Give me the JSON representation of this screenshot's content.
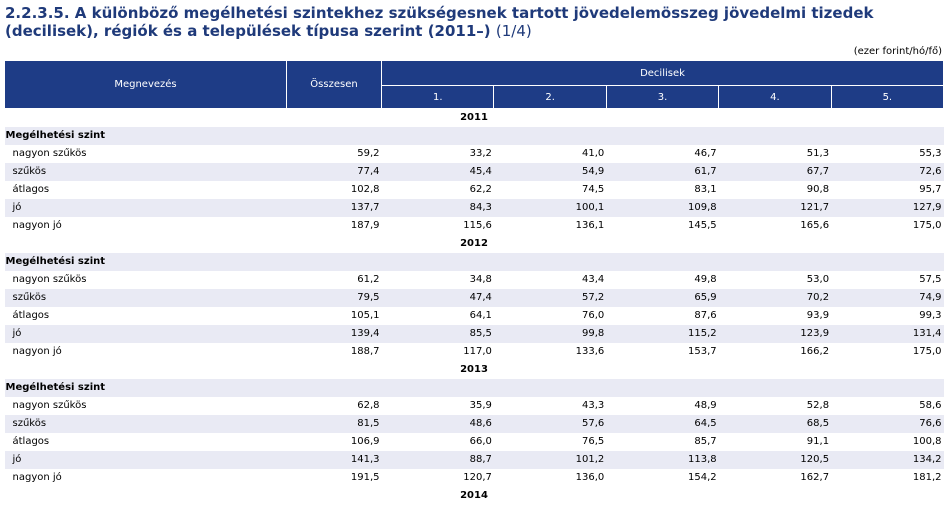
{
  "title": {
    "main": "2.2.3.5. A különböző megélhetési szintekhez szükségesnek tartott jövedelemösszeg jövedelmi tizedek (decilisek), régiók és a települések típusa szerint (2011–)",
    "part": "(1/4)"
  },
  "unit": "(ezer forint/hó/fő)",
  "header": {
    "name_col": "Megnevezés",
    "total_col": "Összesen",
    "decile_group": "Decilisek",
    "deciles": [
      "1.",
      "2.",
      "3.",
      "4.",
      "5."
    ]
  },
  "section_label": "Megélhetési szint",
  "years": [
    {
      "year": "2011",
      "rows": [
        {
          "label": "nagyon szűkös",
          "values": [
            "59,2",
            "33,2",
            "41,0",
            "46,7",
            "51,3",
            "55,3"
          ]
        },
        {
          "label": "szűkös",
          "values": [
            "77,4",
            "45,4",
            "54,9",
            "61,7",
            "67,7",
            "72,6"
          ]
        },
        {
          "label": "átlagos",
          "values": [
            "102,8",
            "62,2",
            "74,5",
            "83,1",
            "90,8",
            "95,7"
          ]
        },
        {
          "label": "jó",
          "values": [
            "137,7",
            "84,3",
            "100,1",
            "109,8",
            "121,7",
            "127,9"
          ]
        },
        {
          "label": "nagyon jó",
          "values": [
            "187,9",
            "115,6",
            "136,1",
            "145,5",
            "165,6",
            "175,0"
          ]
        }
      ]
    },
    {
      "year": "2012",
      "rows": [
        {
          "label": "nagyon szűkös",
          "values": [
            "61,2",
            "34,8",
            "43,4",
            "49,8",
            "53,0",
            "57,5"
          ]
        },
        {
          "label": "szűkös",
          "values": [
            "79,5",
            "47,4",
            "57,2",
            "65,9",
            "70,2",
            "74,9"
          ]
        },
        {
          "label": "átlagos",
          "values": [
            "105,1",
            "64,1",
            "76,0",
            "87,6",
            "93,9",
            "99,3"
          ]
        },
        {
          "label": "jó",
          "values": [
            "139,4",
            "85,5",
            "99,8",
            "115,2",
            "123,9",
            "131,4"
          ]
        },
        {
          "label": "nagyon jó",
          "values": [
            "188,7",
            "117,0",
            "133,6",
            "153,7",
            "166,2",
            "175,0"
          ]
        }
      ]
    },
    {
      "year": "2013",
      "rows": [
        {
          "label": "nagyon szűkös",
          "values": [
            "62,8",
            "35,9",
            "43,3",
            "48,9",
            "52,8",
            "58,6"
          ]
        },
        {
          "label": "szűkös",
          "values": [
            "81,5",
            "48,6",
            "57,6",
            "64,5",
            "68,5",
            "76,6"
          ]
        },
        {
          "label": "átlagos",
          "values": [
            "106,9",
            "66,0",
            "76,5",
            "85,7",
            "91,1",
            "100,8"
          ]
        },
        {
          "label": "jó",
          "values": [
            "141,3",
            "88,7",
            "101,2",
            "113,8",
            "120,5",
            "134,2"
          ]
        },
        {
          "label": "nagyon jó",
          "values": [
            "191,5",
            "120,7",
            "136,0",
            "154,2",
            "162,7",
            "181,2"
          ]
        }
      ]
    },
    {
      "year": "2014",
      "rows": []
    }
  ]
}
